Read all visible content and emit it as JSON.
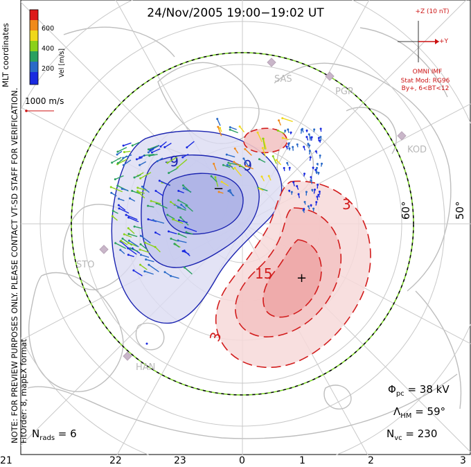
{
  "title": "24/Nov/2005  19:00−19:02  UT",
  "notes": {
    "preview": "NOTE: FOR PREVIEW PURPOSES ONLY. PLEASE CONTACT VT-SD STAFF FOR VERIFICATION.",
    "fit": "FitOrder: 8, mapEX format"
  },
  "colorbar": {
    "coords": "MLT coordinates",
    "label": "Vel [m/s]",
    "ticks": [
      "600",
      "400",
      "200"
    ],
    "colors": [
      "#dd1a1a",
      "#f08a1a",
      "#f0d81a",
      "#8bd11a",
      "#2aa060",
      "#2a6ac8",
      "#1a2ae0"
    ]
  },
  "scale_vector": {
    "label": "1000 m/s",
    "color": "#cc1111"
  },
  "imf": {
    "z_label": "+Z (10 nT)",
    "y_label": "+Y",
    "source": "OMNI IMF",
    "model": "Stat Mod: RG96",
    "condition": "By+, 6<BT<12"
  },
  "stats": {
    "phi_pc": "38 kV",
    "lambda_hm": "59°",
    "n_vc": "230",
    "n_rads": "6"
  },
  "lat_labels": [
    "60°",
    "50°"
  ],
  "mlt_labels": [
    "21",
    "22",
    "23",
    "0",
    "1",
    "2",
    "3"
  ],
  "sites": [
    "SAS",
    "PGR",
    "KOD",
    "STO",
    "HAN"
  ],
  "contour_labels": {
    "neg_minus9_a": "-9",
    "neg_minus9_b": "-9",
    "pos_3_a": "3",
    "pos_3_b": "3",
    "pos_15": "15",
    "min_marker": "−",
    "max_marker": "+"
  },
  "colors": {
    "negative_fill": "#c8cbee",
    "positive_fill": "#f3c4c4",
    "negative_line": "#1a23b0",
    "positive_line": "#d21c1c",
    "land": "#bdbdbd",
    "grid": "#c8c8c8"
  }
}
